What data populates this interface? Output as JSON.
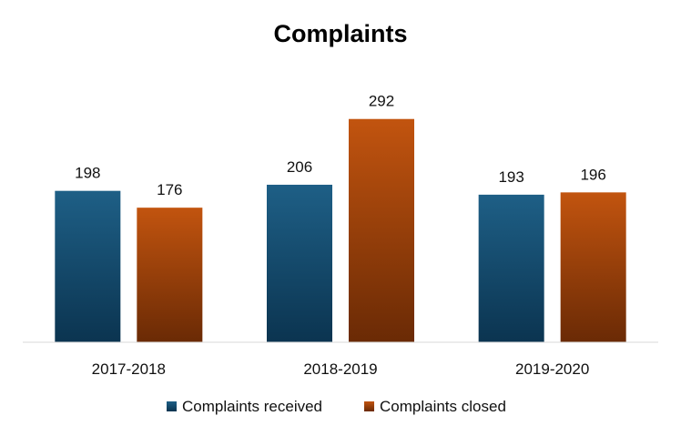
{
  "chart_data": {
    "type": "bar",
    "title": "Complaints",
    "xlabel": "",
    "ylabel": "",
    "categories": [
      "2017-2018",
      "2018-2019",
      "2019-2020"
    ],
    "series": [
      {
        "name": "Complaints received",
        "values": [
          198,
          206,
          193
        ],
        "color_top": "#1e5f86",
        "color_bottom": "#0b3450"
      },
      {
        "name": "Complaints closed",
        "values": [
          176,
          292,
          196
        ],
        "color_top": "#c2540f",
        "color_bottom": "#6a2a05"
      }
    ],
    "ylim": [
      0,
      300
    ],
    "grid": false,
    "legend": "bottom"
  }
}
